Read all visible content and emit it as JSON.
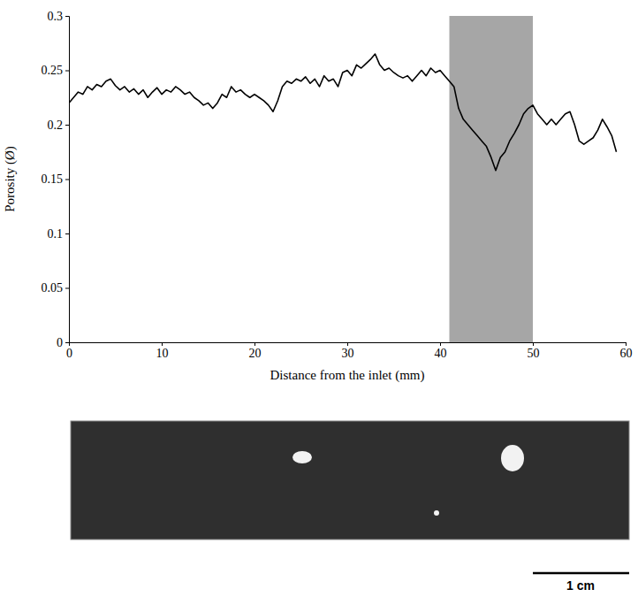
{
  "chart_data": {
    "type": "line",
    "x_label": "Distance from the inlet (mm)",
    "y_label": "Porosity (Ø)",
    "x": [
      0,
      0.5,
      1,
      1.5,
      2,
      2.5,
      3,
      3.5,
      4,
      4.5,
      5,
      5.5,
      6,
      6.5,
      7,
      7.5,
      8,
      8.5,
      9,
      9.5,
      10,
      10.5,
      11,
      11.5,
      12,
      12.5,
      13,
      13.5,
      14,
      14.5,
      15,
      15.5,
      16,
      16.5,
      17,
      17.5,
      18,
      18.5,
      19,
      19.5,
      20,
      20.5,
      21,
      21.5,
      22,
      22.5,
      23,
      23.5,
      24,
      24.5,
      25,
      25.5,
      26,
      26.5,
      27,
      27.5,
      28,
      28.5,
      29,
      29.5,
      30,
      30.5,
      31,
      31.5,
      32,
      32.5,
      33,
      33.5,
      34,
      34.5,
      35,
      35.5,
      36,
      36.5,
      37,
      37.5,
      38,
      38.5,
      39,
      39.5,
      40,
      40.5,
      41,
      41.5,
      42,
      42.5,
      43,
      43.5,
      44,
      44.5,
      45,
      45.5,
      46,
      46.5,
      47,
      47.5,
      48,
      48.5,
      49,
      49.5,
      50,
      50.5,
      51,
      51.5,
      52,
      52.5,
      53,
      53.5,
      54,
      54.5,
      55,
      55.5,
      56,
      56.5,
      57,
      57.5,
      58,
      58.5,
      59
    ],
    "values": [
      0.22,
      0.225,
      0.23,
      0.228,
      0.235,
      0.232,
      0.237,
      0.235,
      0.24,
      0.242,
      0.236,
      0.232,
      0.235,
      0.23,
      0.233,
      0.228,
      0.232,
      0.225,
      0.23,
      0.234,
      0.228,
      0.232,
      0.23,
      0.235,
      0.232,
      0.228,
      0.23,
      0.225,
      0.222,
      0.218,
      0.22,
      0.215,
      0.22,
      0.228,
      0.225,
      0.235,
      0.23,
      0.232,
      0.228,
      0.225,
      0.228,
      0.225,
      0.222,
      0.218,
      0.212,
      0.222,
      0.235,
      0.24,
      0.238,
      0.242,
      0.24,
      0.244,
      0.238,
      0.242,
      0.235,
      0.245,
      0.24,
      0.242,
      0.235,
      0.248,
      0.25,
      0.245,
      0.255,
      0.252,
      0.256,
      0.26,
      0.265,
      0.255,
      0.25,
      0.252,
      0.248,
      0.245,
      0.243,
      0.245,
      0.24,
      0.245,
      0.25,
      0.245,
      0.252,
      0.248,
      0.25,
      0.245,
      0.24,
      0.235,
      0.215,
      0.205,
      0.2,
      0.195,
      0.19,
      0.185,
      0.18,
      0.17,
      0.158,
      0.17,
      0.175,
      0.185,
      0.192,
      0.2,
      0.21,
      0.215,
      0.218,
      0.21,
      0.205,
      0.2,
      0.205,
      0.2,
      0.205,
      0.21,
      0.212,
      0.2,
      0.185,
      0.182,
      0.185,
      0.188,
      0.195,
      0.205,
      0.198,
      0.19,
      0.175
    ],
    "color": "#000000",
    "highlight": [
      41,
      50
    ],
    "xlim": [
      0,
      60
    ],
    "xticks": [
      0,
      10,
      20,
      30,
      40,
      50,
      60
    ],
    "ylim": [
      0,
      0.3
    ],
    "yticks": [
      0,
      0.05,
      0.1,
      0.15,
      0.2,
      0.25,
      0.3
    ],
    "grid": false,
    "scale_bar": "1 cm"
  }
}
